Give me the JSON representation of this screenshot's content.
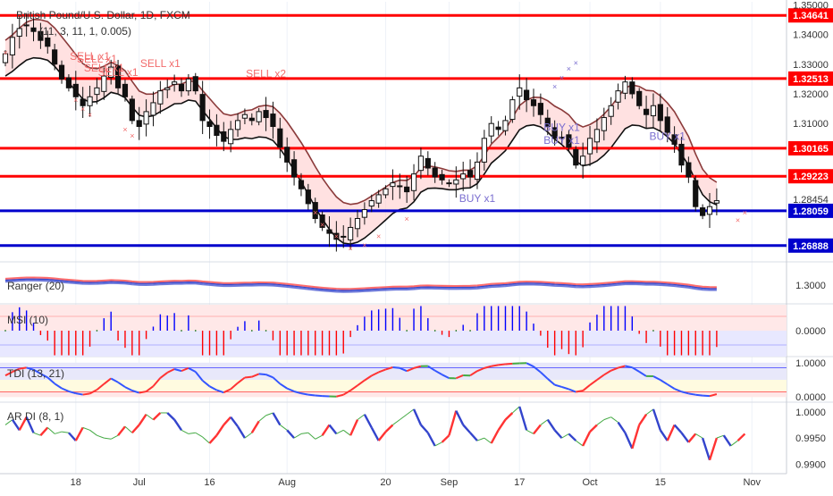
{
  "chart_title": "British Pound/U.S. Dollar, 1D, FXCM",
  "title_suffix_partial": "(11, 3, 11, 1, 0.005)",
  "colors": {
    "bull": "#ffffff",
    "bear": "#111111",
    "level_red": "#ff0000",
    "level_blue": "#0000cc",
    "upper_band": "#8b3a3a",
    "lower_band": "#111111",
    "cloud_up": "#ffc8c8",
    "cloud_down": "#c8c8f0",
    "sell_text": "#f26b6b",
    "buy_text": "#7b6fd0",
    "grid": "#eef2f8",
    "ranger_red": "#ff3333",
    "ranger_blue": "#3344cc",
    "msi_blue": "#0000ff",
    "msi_red": "#ff0000",
    "tdi_red": "#ff3333",
    "tdi_blue": "#3355ff",
    "tdi_green": "#44aa44",
    "ardi_green": "#44aa44",
    "ardi_red": "#ff3333",
    "ardi_blue": "#3344cc"
  },
  "chart_data": [
    {
      "type": "candlestick",
      "title": "British Pound/U.S. Dollar, 1D, FXCM",
      "ylim": [
        1.264,
        1.351
      ],
      "y_ticks": [
        "1.35000",
        "1.34000",
        "1.33000",
        "1.32000",
        "1.31000",
        "1.28454"
      ],
      "x_ticks": [
        {
          "label": "18",
          "index": 10
        },
        {
          "label": "Jul",
          "index": 19
        },
        {
          "label": "16",
          "index": 29
        },
        {
          "label": "Aug",
          "index": 40
        },
        {
          "label": "20",
          "index": 54
        },
        {
          "label": "Sep",
          "index": 63
        },
        {
          "label": "17",
          "index": 73
        },
        {
          "label": "Oct",
          "index": 83
        },
        {
          "label": "15",
          "index": 93
        },
        {
          "label": "Nov",
          "index": 106
        }
      ],
      "levels": [
        {
          "value": 1.34641,
          "label": "1.34641",
          "color": "red"
        },
        {
          "value": 1.32513,
          "label": "1.32513",
          "color": "red"
        },
        {
          "value": 1.30165,
          "label": "1.30165",
          "color": "red"
        },
        {
          "value": 1.29223,
          "label": "1.29223",
          "color": "red"
        },
        {
          "value": 1.28059,
          "label": "1.28059",
          "color": "blue"
        },
        {
          "value": 1.26888,
          "label": "1.26888",
          "color": "blue"
        }
      ],
      "close_series": [
        1.3335,
        1.339,
        1.342,
        1.343,
        1.341,
        1.338,
        1.336,
        1.33,
        1.325,
        1.322,
        1.319,
        1.316,
        1.319,
        1.322,
        1.326,
        1.329,
        1.322,
        1.319,
        1.311,
        1.309,
        1.314,
        1.317,
        1.321,
        1.322,
        1.324,
        1.321,
        1.325,
        1.321,
        1.311,
        1.309,
        1.306,
        1.304,
        1.308,
        1.311,
        1.313,
        1.311,
        1.314,
        1.312,
        1.309,
        1.302,
        1.297,
        1.292,
        1.288,
        1.283,
        1.278,
        1.275,
        1.273,
        1.271,
        1.272,
        1.275,
        1.278,
        1.281,
        1.284,
        1.286,
        1.288,
        1.29,
        1.289,
        1.287,
        1.293,
        1.299,
        1.295,
        1.292,
        1.291,
        1.29,
        1.291,
        1.293,
        1.292,
        1.297,
        1.305,
        1.31,
        1.308,
        1.311,
        1.318,
        1.322,
        1.318,
        1.316,
        1.313,
        1.309,
        1.305,
        1.305,
        1.302,
        1.296,
        1.299,
        1.305,
        1.308,
        1.312,
        1.316,
        1.321,
        1.324,
        1.32,
        1.316,
        1.313,
        1.316,
        1.311,
        1.307,
        1.303,
        1.296,
        1.292,
        1.282,
        1.279,
        1.282,
        1.284
      ],
      "last_price": 1.28454,
      "signals": [
        {
          "text": "SELL x1",
          "index": 12,
          "value": 1.3315,
          "kind": "sell"
        },
        {
          "text": "SELL x1",
          "index": 13,
          "value": 1.3305,
          "kind": "sell"
        },
        {
          "text": "SELL x1",
          "index": 14,
          "value": 1.3275,
          "kind": "sell"
        },
        {
          "text": "SELL x1",
          "index": 16,
          "value": 1.326,
          "kind": "sell"
        },
        {
          "text": "SELL x1",
          "index": 22,
          "value": 1.329,
          "kind": "sell"
        },
        {
          "text": "SELL x2",
          "index": 37,
          "value": 1.3255,
          "kind": "sell"
        },
        {
          "text": "BUY x1",
          "index": 67,
          "value": 1.2835,
          "kind": "buy"
        },
        {
          "text": "BUY x1",
          "index": 79,
          "value": 1.3075,
          "kind": "buy"
        },
        {
          "text": "BUY x1",
          "index": 79,
          "value": 1.3032,
          "kind": "buy"
        },
        {
          "text": "BUY x1",
          "index": 94,
          "value": 1.3045,
          "kind": "buy"
        }
      ]
    },
    {
      "type": "line",
      "title": "Ranger (20)",
      "y_ticks": [
        "1.3000"
      ],
      "ylim": [
        1.24,
        1.36
      ]
    },
    {
      "type": "bar",
      "title": "MSI (10)",
      "y_ticks": [
        "0.0000"
      ],
      "ylim": [
        -1,
        1
      ]
    },
    {
      "type": "line",
      "title": "TDI (13, 21)",
      "y_ticks": [
        "1.0000",
        "0.0000"
      ],
      "ylim": [
        -0.15,
        1.15
      ]
    },
    {
      "type": "line",
      "title": "AR DI (8, 1)",
      "y_ticks": [
        "1.0000",
        "0.9950",
        "0.9900"
      ],
      "ylim": [
        0.9882,
        1.0015
      ],
      "values": [
        0.9975,
        0.9985,
        0.9965,
        0.999,
        0.996,
        0.9955,
        0.997,
        0.9958,
        0.9962,
        0.996,
        0.9945,
        0.997,
        0.9965,
        0.9955,
        0.995,
        0.9948,
        0.9955,
        0.9972,
        0.996,
        0.9975,
        0.9995,
        0.9985,
        0.9998,
        0.9998,
        0.9985,
        0.9965,
        0.9958,
        0.996,
        0.9952,
        0.994,
        0.9955,
        0.9975,
        0.999,
        0.9972,
        0.995,
        0.996,
        0.9982,
        0.9993,
        0.9998,
        0.9975,
        0.9965,
        0.995,
        0.9958,
        0.996,
        0.9948,
        0.9955,
        0.9975,
        0.9958,
        0.9965,
        0.9955,
        0.9985,
        0.9995,
        0.997,
        0.9945,
        0.9962,
        0.9975,
        0.9985,
        0.9995,
        1.0005,
        0.9975,
        0.996,
        0.9935,
        0.9942,
        0.9955,
        1.0002,
        0.9975,
        0.996,
        0.9945,
        0.995,
        0.994,
        0.9965,
        0.9985,
        0.9998,
        1.001,
        0.9965,
        0.9958,
        0.9975,
        0.9985,
        0.9965,
        0.995,
        0.9958,
        0.9945,
        0.9935,
        0.9962,
        0.9975,
        0.9985,
        0.999,
        0.998,
        0.996,
        0.993,
        0.9975,
        0.9995,
        1.0005,
        0.9965,
        0.9945,
        0.9975,
        0.996,
        0.9942,
        0.9958,
        0.995,
        0.9908,
        0.995,
        0.9955,
        0.9935,
        0.9945,
        0.9958
      ],
      "series_colors": [
        "green",
        "red",
        "blue"
      ]
    }
  ]
}
